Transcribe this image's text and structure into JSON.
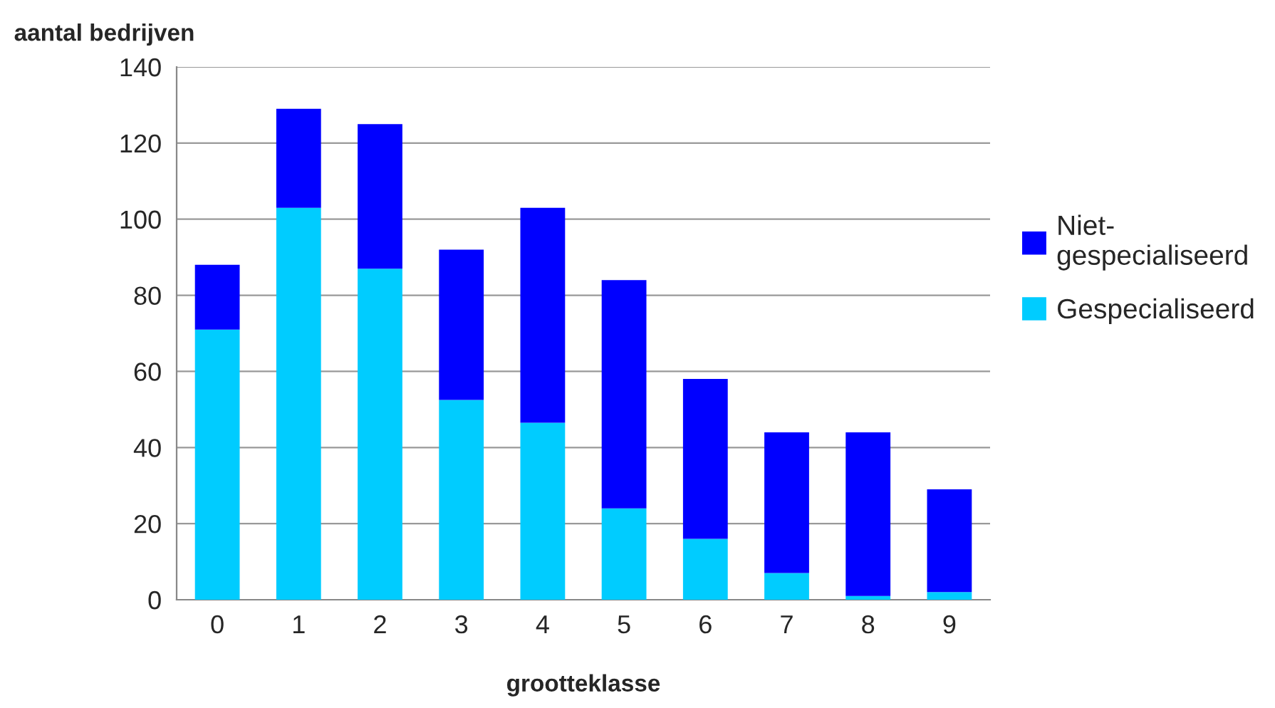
{
  "chart_data": {
    "type": "bar",
    "stacked": true,
    "ylabel": "aantal bedrijven",
    "xlabel": "grootteklasse",
    "categories": [
      "0",
      "1",
      "2",
      "3",
      "4",
      "5",
      "6",
      "7",
      "8",
      "9"
    ],
    "series": [
      {
        "name": "Gespecialiseerd",
        "color": "#00ccff",
        "values": [
          71,
          103,
          87,
          52.5,
          46.5,
          24,
          16,
          7,
          1,
          2
        ]
      },
      {
        "name": "Niet-gespecialiseerd",
        "color": "#0000ff",
        "values": [
          17,
          26,
          38,
          39.5,
          56.5,
          60,
          42,
          37,
          43,
          27
        ]
      }
    ],
    "ylim": [
      0,
      140
    ],
    "yticks": [
      0,
      20,
      40,
      60,
      80,
      100,
      120,
      140
    ],
    "grid": "y",
    "legend": "right"
  }
}
